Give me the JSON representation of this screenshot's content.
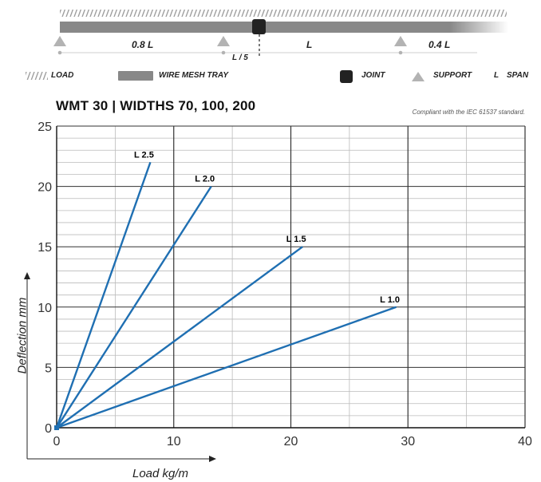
{
  "diagram": {
    "span_labels": [
      "0.8 L",
      "L",
      "0.4 L"
    ],
    "joint_offset_label": "L / 5"
  },
  "legend": {
    "load": "LOAD",
    "tray": "WIRE MESH TRAY",
    "joint": "JOINT",
    "support": "SUPPORT",
    "span_symbol": "L",
    "span": "SPAN"
  },
  "colors": {
    "series": "#1f6fb2",
    "tray": "#888888",
    "joint": "#222222",
    "support": "#b3b3b3",
    "grid_major": "#333333",
    "grid_minor": "#bbbbbb"
  },
  "chart_data": {
    "type": "line",
    "title": "WMT 30 | WIDTHS 70, 100, 200",
    "subtitle": "Compliant with the IEC 61537 standard.",
    "xlabel": "Load kg/m",
    "ylabel": "Deflection mm",
    "xlim": [
      0,
      40
    ],
    "ylim": [
      0,
      25
    ],
    "xticks": [
      0,
      10,
      20,
      30,
      40
    ],
    "yticks": [
      0,
      5,
      10,
      15,
      20,
      25
    ],
    "grid": true,
    "series": [
      {
        "name": "L 2.5",
        "x": [
          0,
          8
        ],
        "y": [
          0,
          22
        ]
      },
      {
        "name": "L 2.0",
        "x": [
          0,
          13.2
        ],
        "y": [
          0,
          20
        ]
      },
      {
        "name": "L 1.5",
        "x": [
          0,
          21
        ],
        "y": [
          0,
          15
        ]
      },
      {
        "name": "L 1.0",
        "x": [
          0,
          29
        ],
        "y": [
          0,
          10
        ]
      }
    ]
  }
}
